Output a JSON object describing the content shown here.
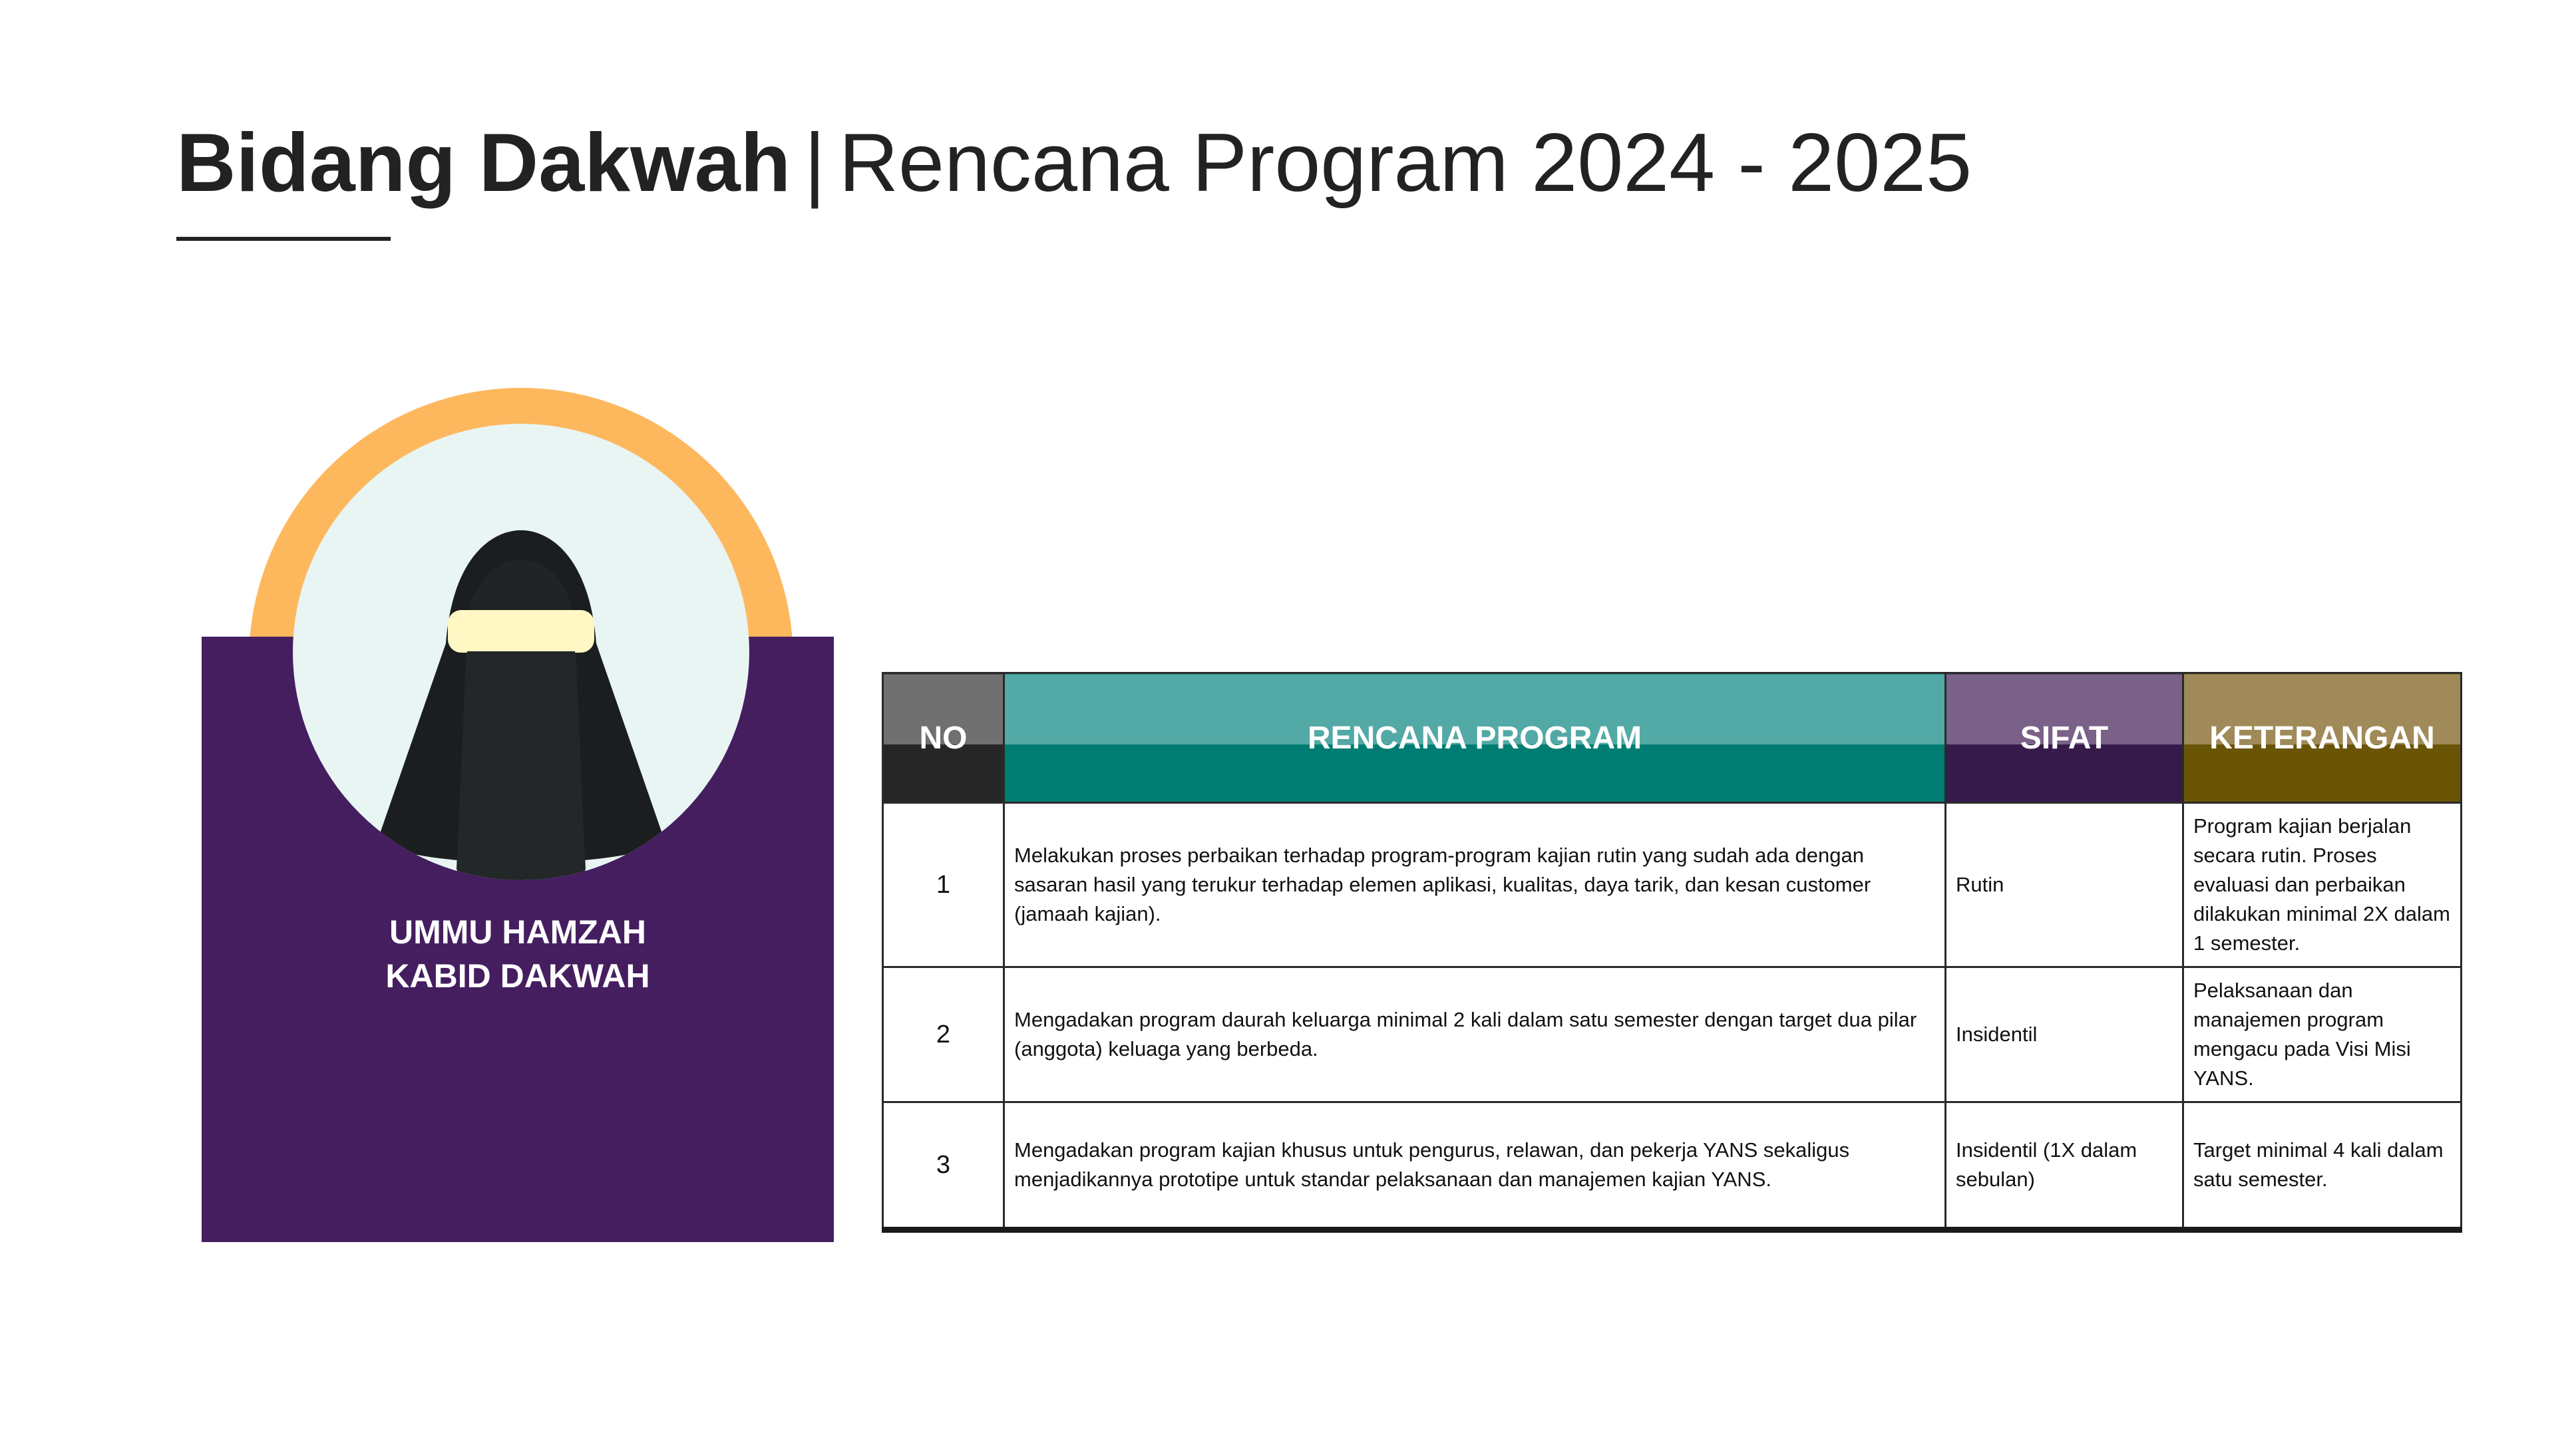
{
  "header": {
    "title_bold": "Bidang Dakwah",
    "separator": "|",
    "title_rest": "Rencana Program 2024 - 2025"
  },
  "profile": {
    "name": "UMMU HAMZAH",
    "role": "KABID DAKWAH",
    "avatar_icon": "niqab-woman-avatar-icon"
  },
  "colors": {
    "card_purple": "#451E60",
    "halo_orange": "#FDB85E",
    "no_header": "#262626",
    "program_header": "#007D72",
    "sifat_header": "#371A4C",
    "keterangan_header": "#6A5406"
  },
  "table": {
    "headers": [
      "NO",
      "RENCANA PROGRAM",
      "SIFAT",
      "KETERANGAN"
    ],
    "rows": [
      {
        "no": "1",
        "program": "Melakukan proses perbaikan terhadap program-program kajian rutin yang sudah ada dengan sasaran hasil yang terukur terhadap elemen aplikasi, kualitas, daya tarik, dan kesan customer (jamaah kajian).",
        "sifat": "Rutin",
        "keterangan": "Program kajian berjalan secara rutin. Proses evaluasi dan perbaikan dilakukan minimal 2X dalam 1 semester."
      },
      {
        "no": "2",
        "program": "Mengadakan program daurah keluarga minimal 2 kali dalam satu semester dengan target dua pilar (anggota) keluaga yang berbeda.",
        "sifat": "Insidentil",
        "keterangan": "Pelaksanaan dan manajemen program mengacu pada Visi Misi YANS."
      },
      {
        "no": "3",
        "program": "Mengadakan program kajian khusus untuk pengurus, relawan, dan pekerja YANS sekaligus menjadikannya prototipe untuk standar pelaksanaan dan manajemen kajian YANS.",
        "sifat": "Insidentil (1X dalam sebulan)",
        "keterangan": "Target minimal 4 kali dalam satu semester."
      }
    ]
  }
}
